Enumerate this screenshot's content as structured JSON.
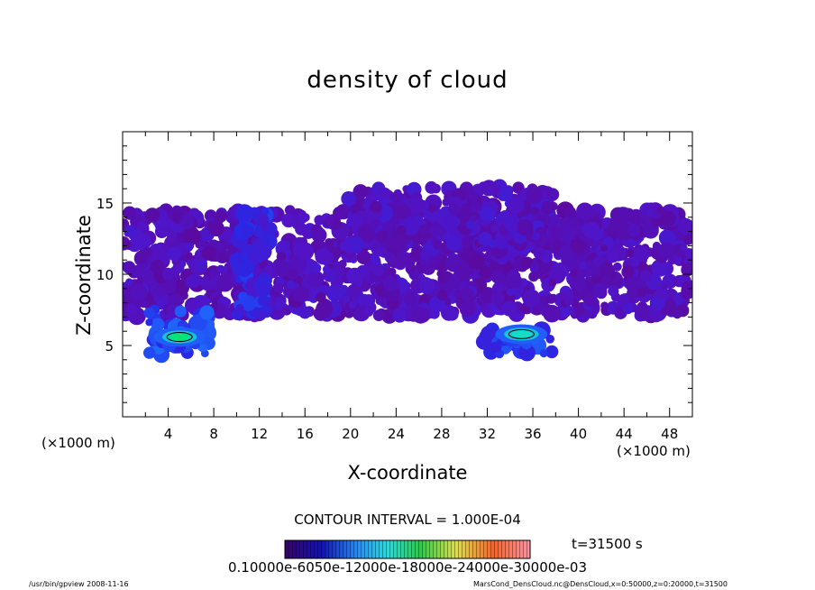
{
  "chart_data": {
    "type": "heatmap",
    "title": "density of cloud",
    "xlabel": "X-coordinate",
    "ylabel": "Z-coordinate",
    "x_unit": "(×1000 m)",
    "y_unit": "(×1000 m)",
    "xlim": [
      0,
      50
    ],
    "ylim": [
      0,
      20
    ],
    "x_ticks": [
      "4",
      "8",
      "12",
      "16",
      "20",
      "24",
      "28",
      "32",
      "36",
      "40",
      "44",
      "48"
    ],
    "y_ticks": [
      "5",
      "10",
      "15"
    ],
    "contour_interval": "CONTOUR INTERVAL = 1.000E-04",
    "time": "t=31500 s",
    "colorbar_label_text": "0.10000e-6050e-12000e-18000e-24000e-30000e-03",
    "colorbar_range": [
      0.0,
      0.0003
    ],
    "regions": [
      {
        "name": "main-layer",
        "x": [
          0,
          50
        ],
        "z": [
          7,
          14.5
        ],
        "level": 0.12
      },
      {
        "name": "upper-dome",
        "x": [
          19.5,
          38
        ],
        "z": [
          12,
          16.2
        ],
        "level": 0.15
      },
      {
        "name": "column-x12",
        "x": [
          10,
          13
        ],
        "z": [
          7,
          14.5
        ],
        "level": 0.35
      },
      {
        "name": "lower-cell-left",
        "x": [
          2.3,
          8
        ],
        "z": [
          4.2,
          7.5
        ],
        "level": 0.5
      },
      {
        "name": "lower-cell-right",
        "x": [
          31.5,
          38
        ],
        "z": [
          4.4,
          6.2
        ],
        "level": 0.45
      }
    ],
    "peaks": [
      {
        "x": 5,
        "z": 5.6,
        "level": 0.95
      },
      {
        "x": 35,
        "z": 5.8,
        "level": 0.8
      }
    ]
  },
  "footer": {
    "left": "/usr/bin/gpview   2008-11-16",
    "right": "MarsCond_DensCloud.nc@DensCloud,x=0:50000,z=0:20000,t=31500"
  },
  "colors": {
    "low": "#5a0a9e",
    "mid": "#2030e0",
    "high": "#00e060"
  }
}
